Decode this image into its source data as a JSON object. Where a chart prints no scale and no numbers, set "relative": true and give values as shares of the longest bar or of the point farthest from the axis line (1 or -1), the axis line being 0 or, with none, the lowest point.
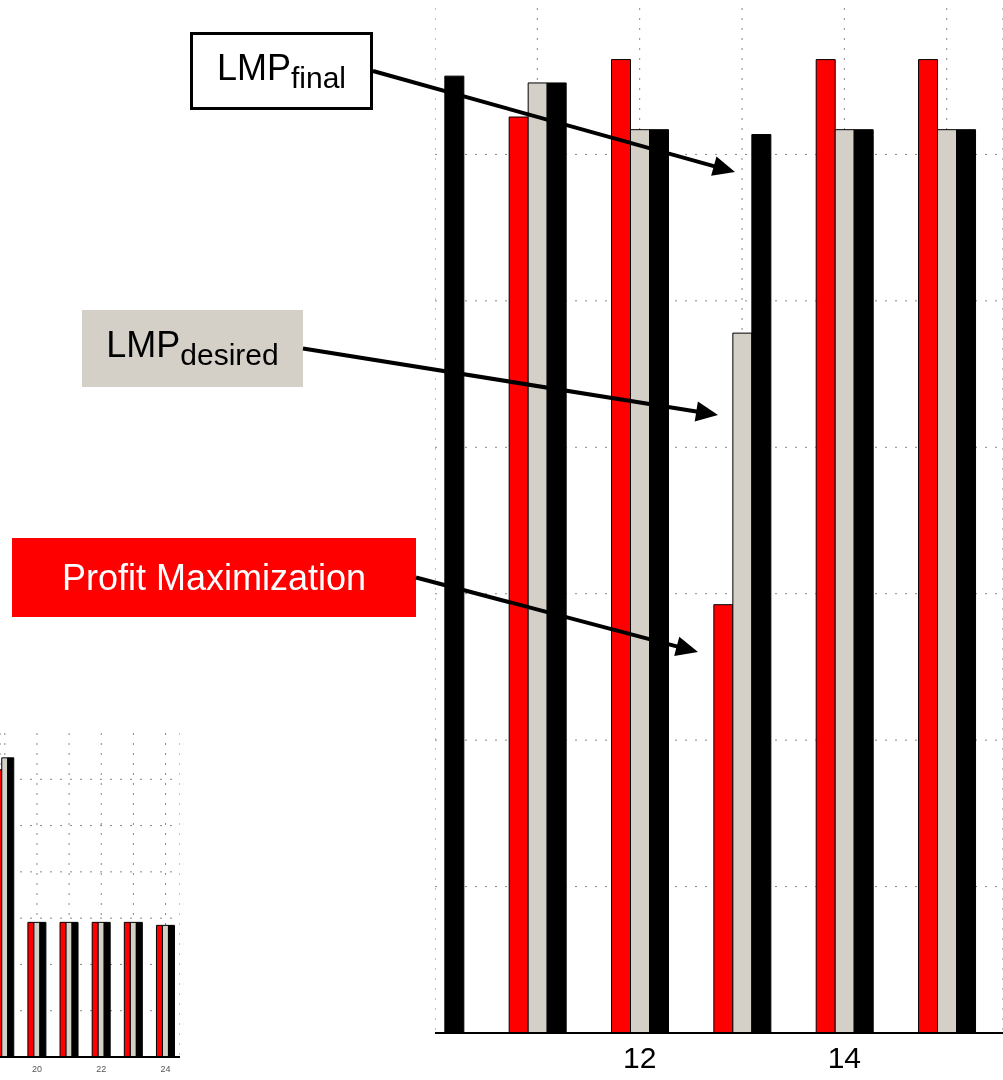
{
  "chart_data": [
    {
      "type": "bar",
      "relative": true,
      "x": [
        10,
        11,
        12,
        13,
        14,
        15
      ],
      "series": [
        {
          "name": "Profit Maximization",
          "color": "#ff0000",
          "values": [
            null,
            0.941,
            1,
            0.44,
            1,
            1
          ]
        },
        {
          "name": "LMP$_{desired}$",
          "color": "#d4d0c8",
          "values": [
            null,
            0.976,
            0.928,
            0.719,
            0.928,
            0.928
          ]
        },
        {
          "name": "LMP$_{final}$",
          "color": "#000000",
          "values": [
            0.983,
            0.976,
            0.928,
            0.923,
            0.928,
            0.928
          ]
        }
      ],
      "xlim": [
        10,
        15.55
      ],
      "xticks": [
        {
          "value": 11,
          "label": null
        },
        12,
        {
          "value": 13,
          "label": null
        },
        14,
        {
          "value": 15,
          "label": null
        }
      ],
      "grid": true,
      "legend": "left"
    },
    {
      "type": "bar",
      "relative": true,
      "x": [
        19,
        20,
        21,
        22,
        23,
        24
      ],
      "series": [
        {
          "color": "#ff0000",
          "values": [
            0.96,
            0.45,
            0.45,
            0.45,
            0.45,
            0.44
          ]
        },
        {
          "color": "#d4d0c8",
          "values": [
            1,
            0.45,
            0.45,
            0.45,
            0.45,
            0.44
          ]
        },
        {
          "color": "#000000",
          "values": [
            1,
            0.45,
            0.45,
            0.45,
            0.45,
            0.44
          ]
        }
      ],
      "xlim": [
        18.85,
        24.45
      ],
      "xticks": [
        {
          "value": 19,
          "label": null
        },
        20,
        {
          "value": 21,
          "label": null
        },
        22,
        {
          "value": 23,
          "label": null
        },
        24
      ],
      "grid": true
    }
  ]
}
